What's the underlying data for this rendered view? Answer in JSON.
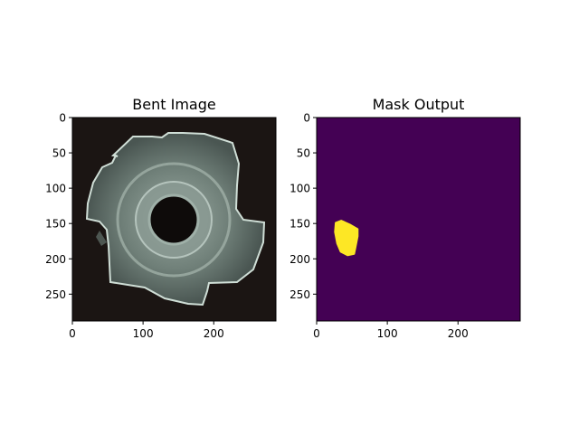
{
  "chart_data": [
    {
      "type": "image",
      "title": "Bent Image",
      "xlim": [
        0,
        288
      ],
      "ylim": [
        288,
        0
      ],
      "xticks": [
        0,
        100,
        200
      ],
      "yticks": [
        0,
        50,
        100,
        150,
        200,
        250
      ],
      "content": "metal-nut-photo",
      "colors": {
        "background": "#1b1513",
        "metal": "#7f8f88",
        "highlight": "#d6e4dc"
      }
    },
    {
      "type": "heatmap",
      "title": "Mask Output",
      "xlim": [
        0,
        288
      ],
      "ylim": [
        288,
        0
      ],
      "xticks": [
        0,
        100,
        200
      ],
      "yticks": [
        0,
        50,
        100,
        150,
        200,
        250
      ],
      "colormap": "viridis",
      "values": [
        0,
        1
      ],
      "colors": {
        "low": "#440154",
        "high": "#fde725"
      },
      "regions": [
        {
          "value": 1,
          "outline": [
            [
              27,
              149
            ],
            [
              35,
              146
            ],
            [
              48,
              152
            ],
            [
              58,
              158
            ],
            [
              58,
              168
            ],
            [
              55,
              183
            ],
            [
              53,
              193
            ],
            [
              44,
              195
            ],
            [
              34,
              190
            ],
            [
              29,
              178
            ],
            [
              26,
              162
            ]
          ]
        }
      ]
    }
  ]
}
